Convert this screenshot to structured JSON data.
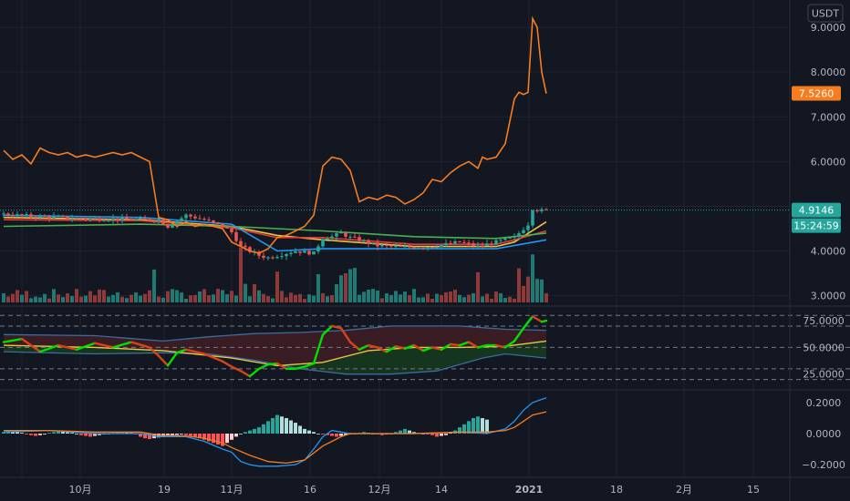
{
  "currency_button": "USDT",
  "colors": {
    "background": "#131722",
    "grid": "#1f2330",
    "separator": "#2a2e39",
    "axis_text": "#b2b5be",
    "up": "#26a69a",
    "down": "#ef5350",
    "vol_up": "#1f7a73",
    "vol_down": "#8e3a3a",
    "overlay_line": "#f57c1f",
    "last_price_line": "#26a69a",
    "ma_yellow": "#e8c547",
    "ma_red": "#e53935",
    "ma_green": "#4caf50",
    "ma_blue": "#2196f3",
    "rsi_bright": "#00e000",
    "rsi_line": "#d84315",
    "band_line": "#3b6c9e",
    "band_upper_fill": "#3a1c24",
    "band_lower_fill": "#16351f",
    "macd_line": "#2196f3",
    "signal_line": "#f57c1f"
  },
  "chart_data": [
    {
      "type": "candlestick",
      "panel": "price",
      "currency": "USDT",
      "y_ticks": [
        "9.0000",
        "8.0000",
        "7.0000",
        "6.0000",
        "4.0000",
        "3.0000"
      ],
      "ylim": [
        2.85,
        9.45
      ],
      "x_labels": [
        "10月",
        "19",
        "11月",
        "16",
        "12月",
        "14",
        "2021",
        "18",
        "2月",
        "15"
      ],
      "last_price_label": "4.9146",
      "last_price": 4.9146,
      "countdown_label": "15:24:59",
      "overlay_last_label": "7.5260",
      "overlay_last_value": 7.526,
      "price_anchors": [
        [
          0,
          4.82
        ],
        [
          6,
          4.78
        ],
        [
          12,
          4.75
        ],
        [
          18,
          4.72
        ],
        [
          24,
          4.72
        ],
        [
          30,
          4.7
        ],
        [
          34,
          4.7
        ],
        [
          36,
          4.55
        ],
        [
          40,
          4.8
        ],
        [
          44,
          4.7
        ],
        [
          48,
          4.55
        ],
        [
          50,
          4.42
        ],
        [
          52,
          4.1
        ],
        [
          54,
          4.0
        ],
        [
          56,
          3.9
        ],
        [
          58,
          3.85
        ],
        [
          60,
          3.9
        ],
        [
          64,
          4.0
        ],
        [
          68,
          3.95
        ],
        [
          70,
          4.3
        ],
        [
          72,
          4.32
        ],
        [
          74,
          4.4
        ],
        [
          76,
          4.3
        ],
        [
          78,
          4.25
        ],
        [
          82,
          4.12
        ],
        [
          88,
          4.08
        ],
        [
          94,
          4.1
        ],
        [
          100,
          4.2
        ],
        [
          104,
          4.1
        ],
        [
          108,
          4.2
        ],
        [
          112,
          4.3
        ],
        [
          115,
          4.6
        ],
        [
          116,
          4.95
        ],
        [
          117,
          4.92
        ],
        [
          118,
          4.9
        ],
        [
          119,
          4.91
        ]
      ],
      "volume_ylim": [
        0,
        2.4
      ],
      "overlay_series": {
        "ylim": [
          2.85,
          9.45
        ],
        "values": [
          [
            0,
            6.25
          ],
          [
            2,
            6.05
          ],
          [
            4,
            6.15
          ],
          [
            6,
            5.95
          ],
          [
            8,
            6.3
          ],
          [
            10,
            6.2
          ],
          [
            12,
            6.15
          ],
          [
            14,
            6.2
          ],
          [
            16,
            6.1
          ],
          [
            18,
            6.15
          ],
          [
            20,
            6.1
          ],
          [
            22,
            6.15
          ],
          [
            24,
            6.2
          ],
          [
            26,
            6.15
          ],
          [
            28,
            6.2
          ],
          [
            30,
            6.1
          ],
          [
            32,
            6.0
          ],
          [
            34,
            4.75
          ],
          [
            36,
            4.7
          ],
          [
            38,
            4.55
          ],
          [
            40,
            4.65
          ],
          [
            42,
            4.55
          ],
          [
            44,
            4.6
          ],
          [
            46,
            4.55
          ],
          [
            48,
            4.5
          ],
          [
            50,
            4.2
          ],
          [
            52,
            4.1
          ],
          [
            54,
            4.0
          ],
          [
            56,
            3.95
          ],
          [
            58,
            4.05
          ],
          [
            60,
            4.3
          ],
          [
            62,
            4.35
          ],
          [
            64,
            4.45
          ],
          [
            66,
            4.55
          ],
          [
            68,
            4.8
          ],
          [
            70,
            5.9
          ],
          [
            72,
            6.1
          ],
          [
            74,
            6.05
          ],
          [
            76,
            5.8
          ],
          [
            78,
            5.1
          ],
          [
            80,
            5.2
          ],
          [
            82,
            5.15
          ],
          [
            84,
            5.25
          ],
          [
            86,
            5.2
          ],
          [
            88,
            5.05
          ],
          [
            90,
            5.15
          ],
          [
            92,
            5.3
          ],
          [
            94,
            5.6
          ],
          [
            96,
            5.55
          ],
          [
            98,
            5.75
          ],
          [
            100,
            5.9
          ],
          [
            102,
            6.0
          ],
          [
            104,
            5.85
          ],
          [
            105,
            6.1
          ],
          [
            106,
            6.05
          ],
          [
            108,
            6.1
          ],
          [
            110,
            6.4
          ],
          [
            112,
            7.4
          ],
          [
            113,
            7.55
          ],
          [
            114,
            7.5
          ],
          [
            115,
            7.55
          ],
          [
            116,
            9.2
          ],
          [
            117,
            9.0
          ],
          [
            118,
            8.0
          ],
          [
            119,
            7.52
          ]
        ]
      },
      "moving_averages": [
        {
          "color": "#e8c547",
          "values": [
            [
              0,
              4.75
            ],
            [
              30,
              4.7
            ],
            [
              50,
              4.55
            ],
            [
              60,
              4.35
            ],
            [
              70,
              4.25
            ],
            [
              90,
              4.1
            ],
            [
              108,
              4.1
            ],
            [
              112,
              4.2
            ],
            [
              119,
              4.65
            ]
          ]
        },
        {
          "color": "#e53935",
          "values": [
            [
              0,
              4.7
            ],
            [
              30,
              4.68
            ],
            [
              50,
              4.52
            ],
            [
              60,
              4.3
            ],
            [
              70,
              4.3
            ],
            [
              90,
              4.15
            ],
            [
              108,
              4.15
            ],
            [
              112,
              4.25
            ],
            [
              119,
              4.45
            ]
          ]
        },
        {
          "color": "#4caf50",
          "values": [
            [
              0,
              4.55
            ],
            [
              30,
              4.6
            ],
            [
              50,
              4.55
            ],
            [
              70,
              4.45
            ],
            [
              90,
              4.32
            ],
            [
              108,
              4.28
            ],
            [
              119,
              4.4
            ]
          ]
        },
        {
          "color": "#2196f3",
          "values": [
            [
              0,
              4.8
            ],
            [
              30,
              4.75
            ],
            [
              50,
              4.6
            ],
            [
              60,
              4.0
            ],
            [
              70,
              4.05
            ],
            [
              90,
              4.05
            ],
            [
              108,
              4.05
            ],
            [
              119,
              4.25
            ]
          ]
        }
      ]
    },
    {
      "type": "line",
      "panel": "rsi",
      "y_ticks": [
        "75.0000",
        "50.0000",
        "25.0000"
      ],
      "ylim": [
        12,
        87
      ],
      "dashed_levels": [
        80,
        70,
        50,
        30,
        20
      ],
      "rsi": [
        [
          0,
          55
        ],
        [
          4,
          58
        ],
        [
          8,
          46
        ],
        [
          12,
          52
        ],
        [
          16,
          48
        ],
        [
          20,
          54
        ],
        [
          24,
          50
        ],
        [
          28,
          55
        ],
        [
          32,
          50
        ],
        [
          34,
          42
        ],
        [
          36,
          33
        ],
        [
          38,
          45
        ],
        [
          40,
          48
        ],
        [
          44,
          44
        ],
        [
          48,
          37
        ],
        [
          50,
          32
        ],
        [
          52,
          28
        ],
        [
          54,
          23
        ],
        [
          56,
          30
        ],
        [
          58,
          34
        ],
        [
          60,
          35
        ],
        [
          62,
          30
        ],
        [
          64,
          30
        ],
        [
          66,
          32
        ],
        [
          68,
          35
        ],
        [
          70,
          62
        ],
        [
          72,
          70
        ],
        [
          74,
          68
        ],
        [
          76,
          55
        ],
        [
          78,
          48
        ],
        [
          80,
          52
        ],
        [
          82,
          50
        ],
        [
          84,
          46
        ],
        [
          86,
          51
        ],
        [
          88,
          49
        ],
        [
          90,
          52
        ],
        [
          92,
          47
        ],
        [
          94,
          50
        ],
        [
          96,
          48
        ],
        [
          98,
          53
        ],
        [
          100,
          52
        ],
        [
          102,
          55
        ],
        [
          104,
          50
        ],
        [
          106,
          52
        ],
        [
          108,
          52
        ],
        [
          110,
          50
        ],
        [
          112,
          56
        ],
        [
          114,
          68
        ],
        [
          116,
          79
        ],
        [
          118,
          74
        ],
        [
          119,
          75
        ]
      ],
      "band_upper": [
        [
          0,
          62
        ],
        [
          20,
          61
        ],
        [
          35,
          56
        ],
        [
          45,
          60
        ],
        [
          55,
          63
        ],
        [
          65,
          64
        ],
        [
          75,
          66
        ],
        [
          85,
          70
        ],
        [
          100,
          70
        ],
        [
          110,
          67
        ],
        [
          119,
          66
        ]
      ],
      "band_lower": [
        [
          0,
          46
        ],
        [
          20,
          44
        ],
        [
          35,
          45
        ],
        [
          45,
          44
        ],
        [
          55,
          38
        ],
        [
          65,
          30
        ],
        [
          75,
          25
        ],
        [
          85,
          25
        ],
        [
          95,
          28
        ],
        [
          105,
          40
        ],
        [
          110,
          44
        ],
        [
          119,
          40
        ]
      ],
      "rsi_ma": [
        [
          0,
          52
        ],
        [
          20,
          50
        ],
        [
          35,
          47
        ],
        [
          50,
          40
        ],
        [
          60,
          33
        ],
        [
          70,
          36
        ],
        [
          80,
          47
        ],
        [
          90,
          50
        ],
        [
          100,
          50
        ],
        [
          110,
          51
        ],
        [
          119,
          56
        ]
      ]
    },
    {
      "type": "bar",
      "panel": "macd",
      "y_ticks": [
        "0.2000",
        "0.0000",
        "−0.2000"
      ],
      "ylim": [
        -0.27,
        0.27
      ],
      "histogram": [
        0.01,
        0.02,
        0.015,
        0.01,
        0.005,
        -0.005,
        -0.01,
        -0.015,
        -0.01,
        -0.005,
        0.005,
        0.01,
        0.015,
        0.012,
        0.008,
        0.005,
        0.0,
        -0.01,
        -0.015,
        -0.02,
        -0.015,
        -0.01,
        -0.005,
        0.0,
        0.005,
        0.01,
        0.012,
        0.01,
        0.005,
        -0.005,
        -0.02,
        -0.03,
        -0.035,
        -0.03,
        -0.025,
        -0.02,
        -0.015,
        -0.01,
        -0.008,
        -0.005,
        -0.01,
        -0.015,
        -0.02,
        -0.03,
        -0.04,
        -0.05,
        -0.06,
        -0.07,
        -0.08,
        -0.06,
        -0.04,
        -0.02,
        0.0,
        0.01,
        0.02,
        0.03,
        0.04,
        0.06,
        0.08,
        0.1,
        0.12,
        0.11,
        0.1,
        0.085,
        0.07,
        0.05,
        0.03,
        0.02,
        0.01,
        0.0,
        -0.005,
        -0.01,
        -0.015,
        -0.02,
        -0.015,
        -0.01,
        -0.005,
        0.0,
        0.005,
        0.01,
        0.005,
        0.0,
        -0.005,
        -0.01,
        -0.005,
        0.0,
        0.01,
        0.02,
        0.03,
        0.02,
        0.01,
        0.005,
        0.0,
        -0.005,
        -0.01,
        -0.02,
        -0.015,
        -0.01,
        0.005,
        0.02,
        0.04,
        0.06,
        0.08,
        0.1,
        0.11,
        0.1,
        0.09
      ],
      "macd": [
        [
          0,
          0.01
        ],
        [
          10,
          0.02
        ],
        [
          20,
          0.0
        ],
        [
          30,
          0.0
        ],
        [
          34,
          -0.02
        ],
        [
          40,
          -0.02
        ],
        [
          44,
          -0.05
        ],
        [
          48,
          -0.1
        ],
        [
          50,
          -0.12
        ],
        [
          52,
          -0.18
        ],
        [
          54,
          -0.2
        ],
        [
          56,
          -0.21
        ],
        [
          60,
          -0.21
        ],
        [
          64,
          -0.2
        ],
        [
          66,
          -0.17
        ],
        [
          68,
          -0.1
        ],
        [
          70,
          -0.02
        ],
        [
          72,
          0.02
        ],
        [
          74,
          0.01
        ],
        [
          76,
          0.0
        ],
        [
          80,
          0.0
        ],
        [
          90,
          0.0
        ],
        [
          100,
          0.01
        ],
        [
          106,
          0.0
        ],
        [
          110,
          0.03
        ],
        [
          112,
          0.08
        ],
        [
          114,
          0.15
        ],
        [
          116,
          0.2
        ],
        [
          119,
          0.23
        ]
      ],
      "signal": [
        [
          0,
          0.02
        ],
        [
          10,
          0.02
        ],
        [
          20,
          0.01
        ],
        [
          30,
          0.01
        ],
        [
          34,
          -0.01
        ],
        [
          40,
          -0.015
        ],
        [
          44,
          -0.03
        ],
        [
          48,
          -0.06
        ],
        [
          50,
          -0.09
        ],
        [
          54,
          -0.14
        ],
        [
          58,
          -0.18
        ],
        [
          62,
          -0.19
        ],
        [
          66,
          -0.17
        ],
        [
          70,
          -0.08
        ],
        [
          72,
          -0.05
        ],
        [
          74,
          -0.02
        ],
        [
          76,
          0.0
        ],
        [
          80,
          0.0
        ],
        [
          90,
          0.0
        ],
        [
          100,
          0.01
        ],
        [
          106,
          0.01
        ],
        [
          110,
          0.02
        ],
        [
          112,
          0.04
        ],
        [
          114,
          0.08
        ],
        [
          116,
          0.12
        ],
        [
          119,
          0.14
        ]
      ]
    }
  ]
}
